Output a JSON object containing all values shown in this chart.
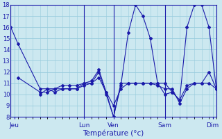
{
  "xlabel": "Température (°c)",
  "bg_color": "#cce8f0",
  "grid_color": "#99ccdd",
  "line_color": "#1a1aaa",
  "ylim": [
    8,
    18
  ],
  "yticks": [
    8,
    9,
    10,
    11,
    12,
    13,
    14,
    15,
    16,
    17,
    18
  ],
  "xlim": [
    0,
    28
  ],
  "day_labels": [
    "Jeu",
    "Lun",
    "Ven",
    "Sam",
    "Dim"
  ],
  "day_positions": [
    0.5,
    10,
    14,
    21,
    27.5
  ],
  "vline_positions": [
    0,
    10,
    14,
    21,
    28
  ],
  "lines": [
    {
      "x": [
        0,
        1,
        4,
        5,
        6,
        7,
        8,
        9,
        10,
        11,
        12,
        13,
        14,
        15,
        16,
        17,
        18,
        19,
        20,
        21,
        22,
        23,
        24,
        25,
        26,
        27,
        28
      ],
      "y": [
        16,
        14.5,
        10.5,
        10.5,
        10.5,
        10.8,
        10.8,
        10.8,
        11.0,
        11.0,
        12.0,
        10.0,
        8.0,
        10.8,
        15.5,
        18.0,
        17.0,
        15.0,
        11.0,
        10.0,
        10.2,
        9.5,
        16.0,
        18.0,
        18.0,
        16.0,
        10.5
      ]
    },
    {
      "x": [
        1,
        4,
        5,
        6,
        7,
        8,
        9,
        10,
        11,
        12,
        13,
        14,
        15,
        16,
        17,
        18,
        19,
        20,
        21,
        22,
        23,
        24,
        25,
        26,
        27,
        28
      ],
      "y": [
        11.5,
        10.2,
        10.2,
        10.5,
        10.5,
        10.5,
        10.5,
        11.0,
        11.2,
        12.2,
        10.2,
        8.0,
        11.0,
        11.0,
        11.0,
        11.0,
        11.0,
        11.0,
        11.0,
        10.2,
        9.5,
        10.8,
        11.0,
        11.0,
        12.0,
        10.5
      ]
    },
    {
      "x": [
        4,
        5,
        6,
        7,
        8,
        9,
        10,
        11,
        12,
        13,
        14,
        15,
        16,
        17,
        18,
        19,
        20,
        21,
        22,
        23,
        24,
        25,
        26,
        27,
        28
      ],
      "y": [
        10.0,
        10.5,
        10.2,
        10.5,
        10.5,
        10.5,
        10.8,
        11.0,
        11.5,
        10.2,
        9.0,
        10.5,
        11.0,
        11.0,
        11.0,
        11.0,
        10.8,
        10.5,
        10.5,
        9.2,
        10.5,
        11.0,
        11.0,
        11.0,
        10.5
      ]
    }
  ]
}
